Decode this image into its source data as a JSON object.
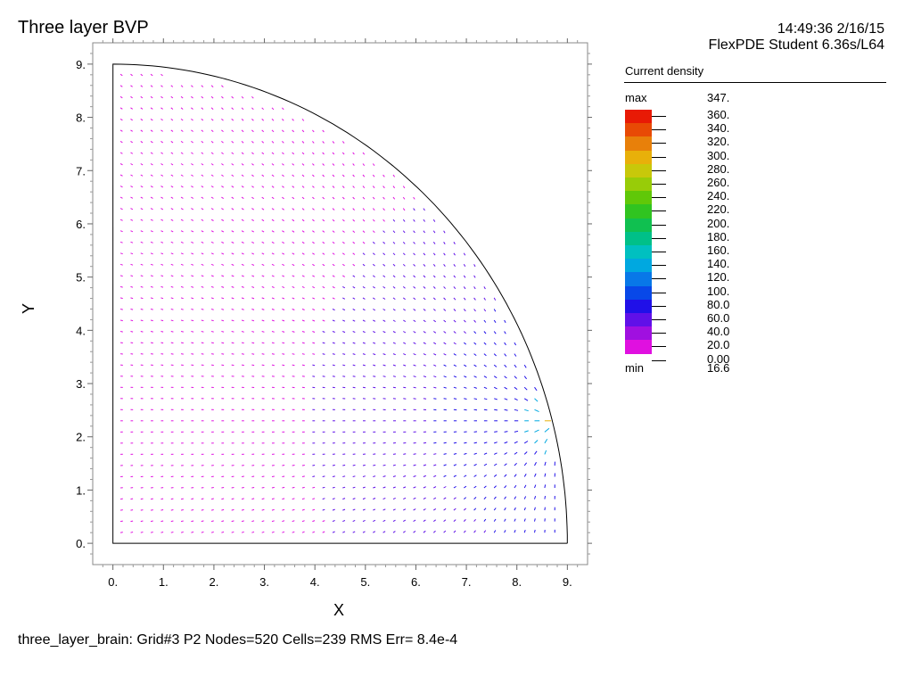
{
  "header": {
    "title": "Three layer BVP",
    "timestamp": "14:49:36 2/16/15",
    "software": "FlexPDE Student 6.36s/L64"
  },
  "footer": {
    "status": "three_layer_brain:  Grid#3  P2  Nodes=520 Cells=239 RMS Err= 8.4e-4"
  },
  "legend": {
    "title": "Current density",
    "max_label": "max",
    "max_value": "347.",
    "min_label": "min",
    "min_value": "16.6",
    "levels": [
      {
        "label": "360.",
        "color": "#e81a05"
      },
      {
        "label": "340.",
        "color": "#e84a05"
      },
      {
        "label": "320.",
        "color": "#e8800a"
      },
      {
        "label": "300.",
        "color": "#e8b00a"
      },
      {
        "label": "280.",
        "color": "#c8c80a"
      },
      {
        "label": "260.",
        "color": "#98cc08"
      },
      {
        "label": "240.",
        "color": "#60c808"
      },
      {
        "label": "220.",
        "color": "#30c420"
      },
      {
        "label": "200.",
        "color": "#10c050"
      },
      {
        "label": "180.",
        "color": "#00c088"
      },
      {
        "label": "160.",
        "color": "#00c0c0"
      },
      {
        "label": "140.",
        "color": "#00a8e0"
      },
      {
        "label": "120.",
        "color": "#0878e8"
      },
      {
        "label": "100.",
        "color": "#0848e8"
      },
      {
        "label": "80.0",
        "color": "#2010e8"
      },
      {
        "label": "60.0",
        "color": "#6010e8"
      },
      {
        "label": "40.0",
        "color": "#a010e0"
      },
      {
        "label": "20.0",
        "color": "#e010e0"
      },
      {
        "label": "0.00",
        "color": "#ffffff"
      }
    ]
  },
  "chart_data": {
    "type": "scatter",
    "plot_kind": "vector-field",
    "xlabel": "X",
    "ylabel": "Y",
    "xlim": [
      -0.4,
      9.4
    ],
    "ylim": [
      -0.4,
      9.4
    ],
    "xticks": [
      "0.",
      "1.",
      "2.",
      "3.",
      "4.",
      "5.",
      "6.",
      "7.",
      "8.",
      "9."
    ],
    "yticks": [
      "0.",
      "1.",
      "2.",
      "3.",
      "4.",
      "5.",
      "6.",
      "7.",
      "8.",
      "9."
    ],
    "domain_boundary": "quarter circle of radius 9 with bottom edge y=0 and left edge x=0",
    "source_point": [
      8.8,
      2.3
    ],
    "grid": false,
    "legend_position": "right",
    "min_value": 16.6,
    "max_value": 347
  }
}
